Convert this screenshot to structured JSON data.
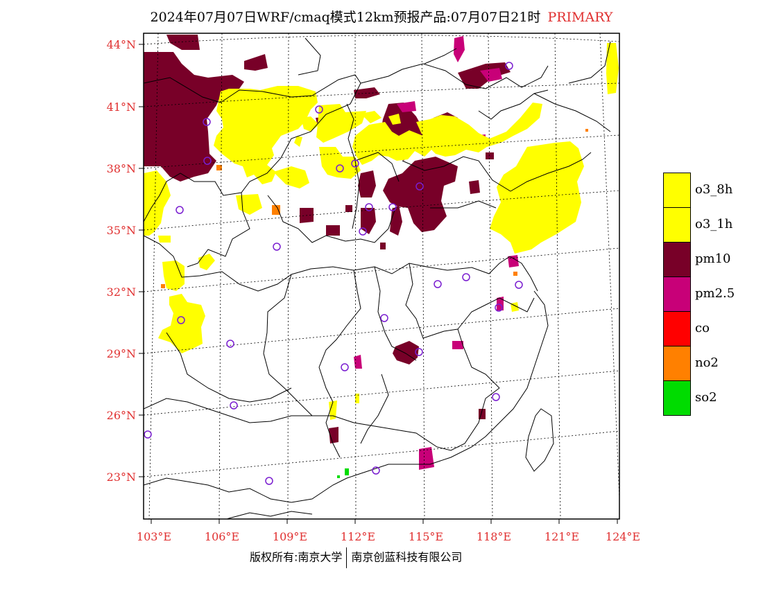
{
  "title": {
    "main": "2024年07月07日WRF/cmaq模式12km预报产品:07月07日21时",
    "tag": "PRIMARY"
  },
  "axes": {
    "lat_labels": [
      "44°N",
      "41°N",
      "38°N",
      "35°N",
      "32°N",
      "29°N",
      "26°N",
      "23°N"
    ],
    "lon_labels": [
      "103°E",
      "106°E",
      "109°E",
      "112°E",
      "115°E",
      "118°E",
      "121°E",
      "124°E"
    ]
  },
  "legend": {
    "items": [
      {
        "label": "o3_8h",
        "color": "#ffff00"
      },
      {
        "label": "o3_1h",
        "color": "#ffff00"
      },
      {
        "label": "pm10",
        "color": "#780028"
      },
      {
        "label": "pm2.5",
        "color": "#c80078"
      },
      {
        "label": "co",
        "color": "#ff0000"
      },
      {
        "label": "no2",
        "color": "#ff8000"
      },
      {
        "label": "so2",
        "color": "#00dc00"
      }
    ]
  },
  "footer": {
    "left": "版权所有:南京大学",
    "right": "南京创蓝科技有限公司"
  },
  "colors": {
    "axis_label": "#e03030",
    "station_marker": "#7a1ed0"
  }
}
